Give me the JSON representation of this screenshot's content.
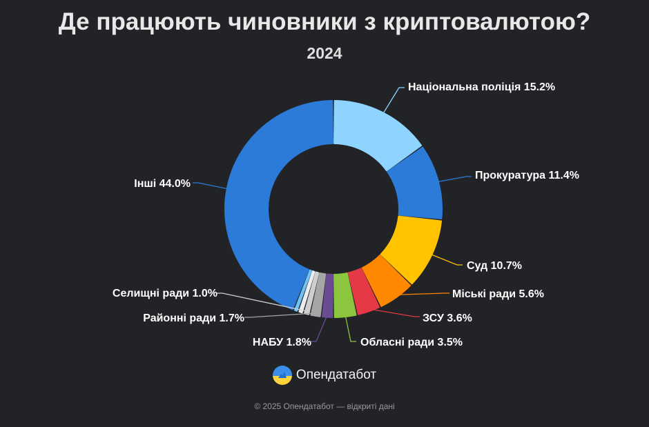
{
  "title": "Де працюють чиновники з криптовалютою?",
  "subtitle": "2024",
  "brand": {
    "name": "Опендатабот",
    "icon": "opendatabot-logo-icon"
  },
  "footer": "© 2025 Опендатабот — відкриті дані",
  "chart_data": {
    "type": "pie",
    "variant": "donut",
    "title": "Де працюють чиновники з криптовалютою?",
    "subtitle": "2024",
    "categories": [
      "Національна поліція",
      "Прокуратура",
      "Суд",
      "Міські ради",
      "ЗСУ",
      "Обласні ради",
      "НАБУ",
      "Районні ради",
      "Селищні ради",
      "",
      "",
      "Інші"
    ],
    "values": [
      15.2,
      11.4,
      10.7,
      5.6,
      3.6,
      3.5,
      1.8,
      1.7,
      1.0,
      0.8,
      0.7,
      44.0
    ],
    "labels": [
      "Національна поліція 15.2%",
      "Прокуратура 11.4%",
      "Суд 10.7%",
      "Міські ради 5.6%",
      "ЗСУ 3.6%",
      "Обласні ради 3.5%",
      "НАБУ 1.8%",
      "Районні ради 1.7%",
      "Селищні ради 1.0%",
      "",
      "",
      "Інші 44.0%"
    ],
    "colors": [
      "#8fd3ff",
      "#2c7bd8",
      "#ffc300",
      "#ff8800",
      "#e63946",
      "#8cc63f",
      "#6a4c93",
      "#a6a6a6",
      "#cfcfcf",
      "#e9edf2",
      "#6fc2f4",
      "#2c7bd8"
    ]
  }
}
